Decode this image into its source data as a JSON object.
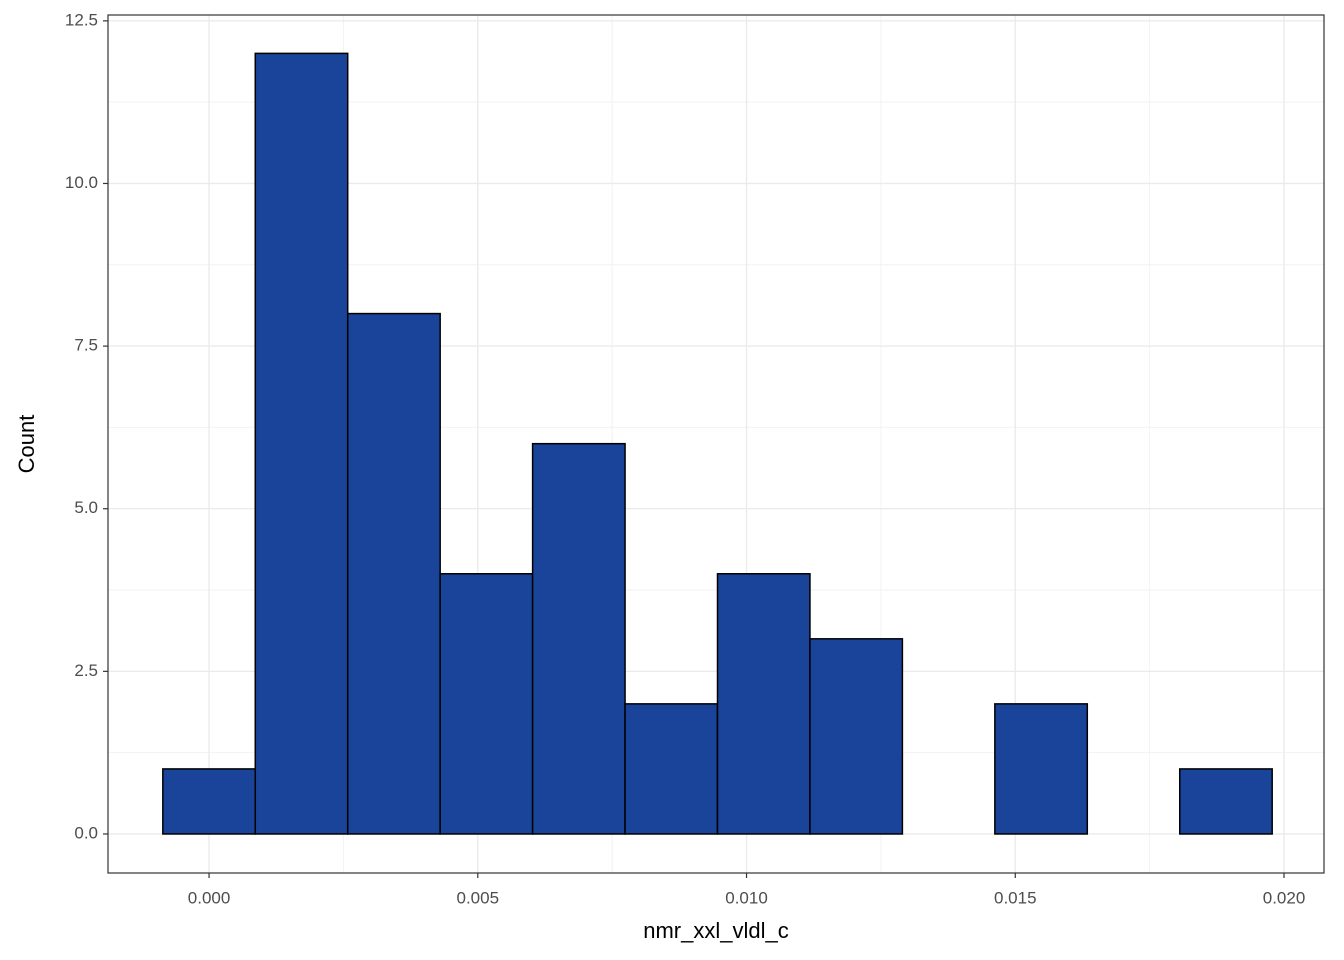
{
  "chart_data": {
    "type": "histogram",
    "x_label": "nmr_xxl_vldl_c",
    "y_label": "Count",
    "bins": [
      -0.00086,
      0.00086,
      0.00258,
      0.0043,
      0.00602,
      0.00774,
      0.00946,
      0.01118,
      0.0129,
      0.01462,
      0.01634,
      0.01806,
      0.01978
    ],
    "values": [
      1,
      12,
      8,
      4,
      6,
      2,
      4,
      3,
      0,
      2,
      0,
      1
    ],
    "color": "#19449a",
    "edge_color": "#000000",
    "xlim": [
      -0.00188,
      0.020744
    ],
    "ylim": [
      -0.6,
      12.59
    ],
    "xticks": [
      {
        "value": 0,
        "label": "0.000"
      },
      {
        "value": 0.005,
        "label": "0.005"
      },
      {
        "value": 0.01,
        "label": "0.010"
      },
      {
        "value": 0.015,
        "label": "0.015"
      },
      {
        "value": 0.02,
        "label": "0.020"
      }
    ],
    "yticks": [
      {
        "value": 0,
        "label": "0.0"
      },
      2.5,
      {
        "value": 5,
        "label": "5.0"
      },
      7.5,
      {
        "value": 10,
        "label": "10.0"
      },
      12.5
    ],
    "grid": true
  }
}
